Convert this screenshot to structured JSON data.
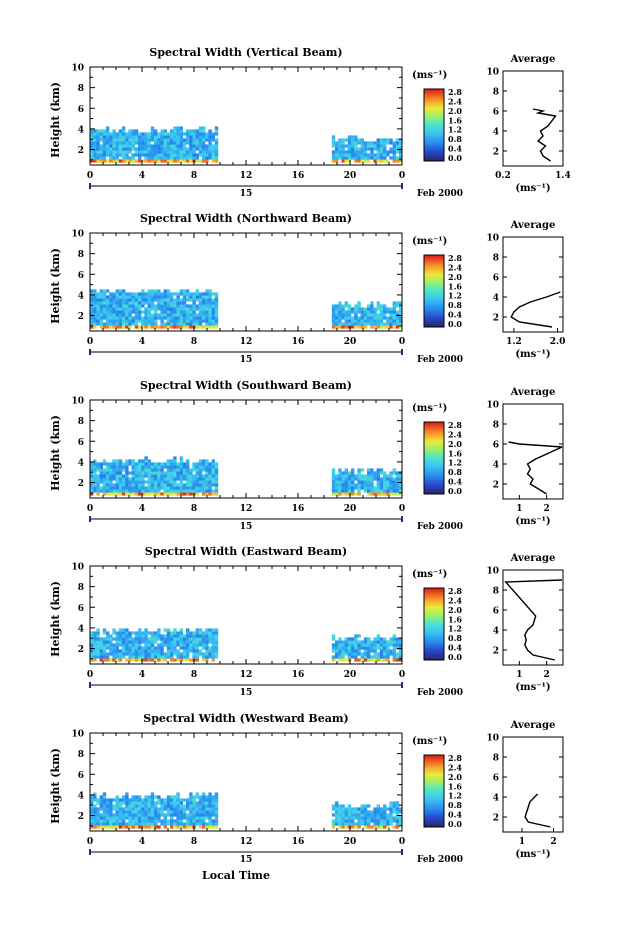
{
  "units_label": "(ms⁻¹)",
  "colorbar_ticks": [
    "0.0",
    "0.4",
    "0.8",
    "1.2",
    "1.6",
    "2.0",
    "2.4",
    "2.8"
  ],
  "date_label": "Feb 2000",
  "day_label": "15",
  "xlabel": "Local Time",
  "panels": [
    {
      "title": "Spectral Width (Vertical Beam)",
      "ylabel": "Height (km)",
      "avg_title": "Average",
      "avg_xlabel": "(ms⁻¹)",
      "avg_xticks": [
        "0.2",
        "1.4"
      ]
    },
    {
      "title": "Spectral Width (Northward Beam)",
      "ylabel": "Height (km)",
      "avg_title": "Average",
      "avg_xlabel": "(ms⁻¹)",
      "avg_xticks": [
        "1.2",
        "2.0"
      ]
    },
    {
      "title": "Spectral Width (Southward Beam)",
      "ylabel": "Height (km)",
      "avg_title": "Average",
      "avg_xlabel": "(ms⁻¹)",
      "avg_xticks": [
        "1",
        "2"
      ]
    },
    {
      "title": "Spectral Width (Eastward Beam)",
      "ylabel": "Height (km)",
      "avg_title": "Average",
      "avg_xlabel": "(ms⁻¹)",
      "avg_xticks": [
        "1",
        "2"
      ]
    },
    {
      "title": "Spectral Width (Westward Beam)",
      "ylabel": "Height (km)",
      "avg_title": "Average",
      "avg_xlabel": "(ms⁻¹)",
      "avg_xticks": [
        "1",
        "2"
      ]
    }
  ],
  "chart_data": {
    "type": "heatmap",
    "x_ticks": [
      "0",
      "4",
      "8",
      "12",
      "16",
      "20",
      "0"
    ],
    "y_ticks": [
      "2",
      "4",
      "6",
      "8",
      "10"
    ],
    "xlim": [
      0,
      24
    ],
    "ylim": [
      0.5,
      10
    ],
    "color_range": [
      0.0,
      3.0
    ],
    "data_intervals_hours": [
      [
        0,
        9.8
      ],
      [
        18.6,
        24
      ]
    ],
    "panels": [
      {
        "beam": "Vertical",
        "echo_top_km": [
          3.8,
          2.9
        ],
        "avg_profile": {
          "heights": [
            1.0,
            1.5,
            2.0,
            2.5,
            3.0,
            3.5,
            4.0,
            4.5,
            5.5,
            5.8,
            6.0,
            6.2
          ],
          "values": [
            1.15,
            1.0,
            0.95,
            1.05,
            0.9,
            1.0,
            0.95,
            1.1,
            1.25,
            0.9,
            1.0,
            0.8
          ],
          "xlim": [
            0.2,
            1.4
          ]
        }
      },
      {
        "beam": "Northward",
        "echo_top_km": [
          4.2,
          2.9
        ],
        "avg_profile": {
          "heights": [
            1.0,
            1.5,
            2.0,
            2.5,
            3.0,
            3.5,
            4.0,
            4.5
          ],
          "values": [
            1.9,
            1.3,
            1.15,
            1.2,
            1.3,
            1.5,
            1.8,
            2.05
          ],
          "xlim": [
            1.0,
            2.1
          ]
        }
      },
      {
        "beam": "Southward",
        "echo_top_km": [
          4.0,
          3.0
        ],
        "avg_profile": {
          "heights": [
            1.0,
            1.5,
            2.0,
            2.5,
            3.0,
            3.5,
            4.0,
            4.5,
            5.7,
            6.0,
            6.2
          ],
          "values": [
            2.0,
            1.7,
            1.4,
            1.5,
            1.3,
            1.4,
            1.3,
            1.6,
            2.6,
            1.0,
            0.6
          ],
          "xlim": [
            0.4,
            2.6
          ]
        }
      },
      {
        "beam": "Eastward",
        "echo_top_km": [
          3.6,
          3.0
        ],
        "avg_profile": {
          "heights": [
            1.0,
            1.5,
            2.0,
            2.5,
            3.0,
            3.5,
            4.0,
            4.5,
            5.4,
            8.8,
            9.0
          ],
          "values": [
            2.3,
            1.5,
            1.3,
            1.2,
            1.25,
            1.2,
            1.3,
            1.5,
            1.6,
            0.5,
            2.6
          ],
          "xlim": [
            0.4,
            2.6
          ]
        }
      },
      {
        "beam": "Westward",
        "echo_top_km": [
          3.8,
          2.9
        ],
        "avg_profile": {
          "heights": [
            1.0,
            1.5,
            2.0,
            2.5,
            3.0,
            3.5,
            4.0,
            4.3
          ],
          "values": [
            1.9,
            1.2,
            1.1,
            1.15,
            1.2,
            1.25,
            1.4,
            1.5
          ],
          "xlim": [
            0.4,
            2.3
          ]
        }
      }
    ]
  }
}
